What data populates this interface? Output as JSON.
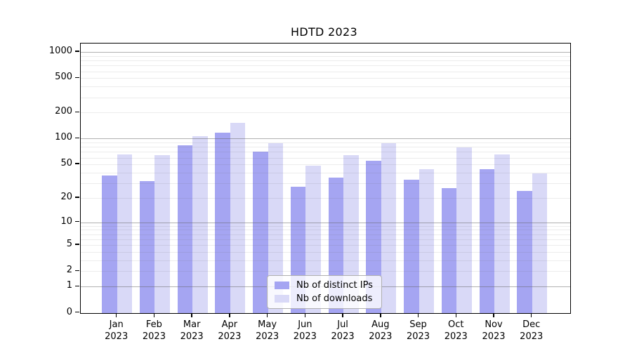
{
  "chart_data": {
    "type": "bar",
    "title": "HDTD 2023",
    "xlabel": "",
    "ylabel": "",
    "yscale": "symlog",
    "ylim": [
      0,
      1265
    ],
    "yticks": [
      0,
      1,
      2,
      5,
      10,
      20,
      50,
      100,
      200,
      500,
      1000
    ],
    "grid": true,
    "legend_position": "lower center",
    "categories": [
      "Jan 2023",
      "Feb 2023",
      "Mar 2023",
      "Apr 2023",
      "May 2023",
      "Jun 2023",
      "Jul 2023",
      "Aug 2023",
      "Sep 2023",
      "Oct 2023",
      "Nov 2023",
      "Dec 2023"
    ],
    "month_labels": [
      "Jan",
      "Feb",
      "Mar",
      "Apr",
      "May",
      "Jun",
      "Jul",
      "Aug",
      "Sep",
      "Oct",
      "Nov",
      "Dec"
    ],
    "year_label": "2023",
    "series": [
      {
        "name": "Nb of distinct IPs",
        "color": "#a5a5f2",
        "values": [
          37,
          32,
          84,
          117,
          71,
          27,
          35,
          55,
          33,
          26,
          44,
          24
        ]
      },
      {
        "name": "Nb of downloads",
        "color": "#d9d9f7",
        "values": [
          65,
          64,
          107,
          152,
          88,
          48,
          64,
          88,
          44,
          79,
          65,
          39
        ]
      }
    ]
  },
  "colors": {
    "major_grid": "#aaaaaa",
    "minor_grid": "#ececec",
    "axis": "#000000",
    "background": "#ffffff"
  }
}
